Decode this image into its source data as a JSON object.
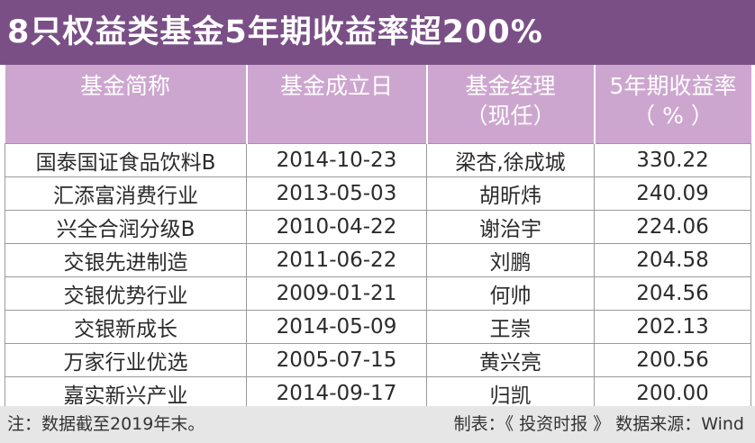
{
  "title": "8只权益类基金5年期收益率超200%",
  "columns": [
    {
      "line1": "基金简称",
      "line2": ""
    },
    {
      "line1": "基金成立日",
      "line2": ""
    },
    {
      "line1": "基金经理",
      "line2": "（现任）"
    },
    {
      "line1": "5年期收益率",
      "line2": "（ % ）"
    }
  ],
  "rows": [
    {
      "name": "国泰国证食品饮料B",
      "date": "2014-10-23",
      "manager": "梁杏,徐成城",
      "return": "330.22"
    },
    {
      "name": "汇添富消费行业",
      "date": "2013-05-03",
      "manager": "胡昕炜",
      "return": "240.09"
    },
    {
      "name": "兴全合润分级B",
      "date": "2010-04-22",
      "manager": "谢治宇",
      "return": "224.06"
    },
    {
      "name": "交银先进制造",
      "date": "2011-06-22",
      "manager": "刘鹏",
      "return": "204.58"
    },
    {
      "name": "交银优势行业",
      "date": "2009-01-21",
      "manager": "何帅",
      "return": "204.56"
    },
    {
      "name": "交银新成长",
      "date": "2014-05-09",
      "manager": "王崇",
      "return": "202.13"
    },
    {
      "name": "万家行业优选",
      "date": "2005-07-15",
      "manager": "黄兴亮",
      "return": "200.56"
    },
    {
      "name": "嘉实新兴产业",
      "date": "2014-09-17",
      "manager": "归凯",
      "return": "200.00"
    }
  ],
  "footer": {
    "note": "注：数据截至2019年末。",
    "credit": "制表：《 投资时报 》 数据来源：Wind"
  }
}
